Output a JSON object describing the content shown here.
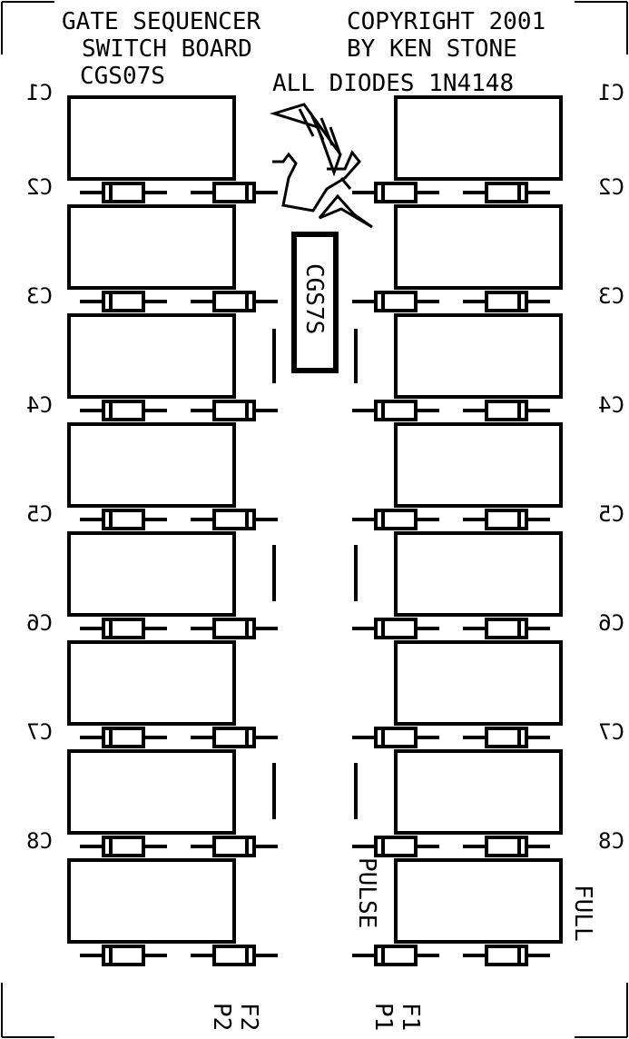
{
  "header": {
    "title_line1": "GATE SEQUENCER",
    "title_line2": "SWITCH BOARD",
    "part_code": "CGS07S",
    "copyright_line1": "COPYRIGHT 2001",
    "copyright_line2": "BY KEN STONE",
    "diode_note": "ALL DIODES 1N4148"
  },
  "chip_label": "CGS7S",
  "row_labels": [
    "C1",
    "C2",
    "C3",
    "C4",
    "C5",
    "C6",
    "C7",
    "C8"
  ],
  "side_labels": {
    "pulse": "PULSE",
    "full": "FULL"
  },
  "bottom_labels": {
    "f2": "F2",
    "p2": "P2",
    "f1": "F1",
    "p1": "P1"
  }
}
